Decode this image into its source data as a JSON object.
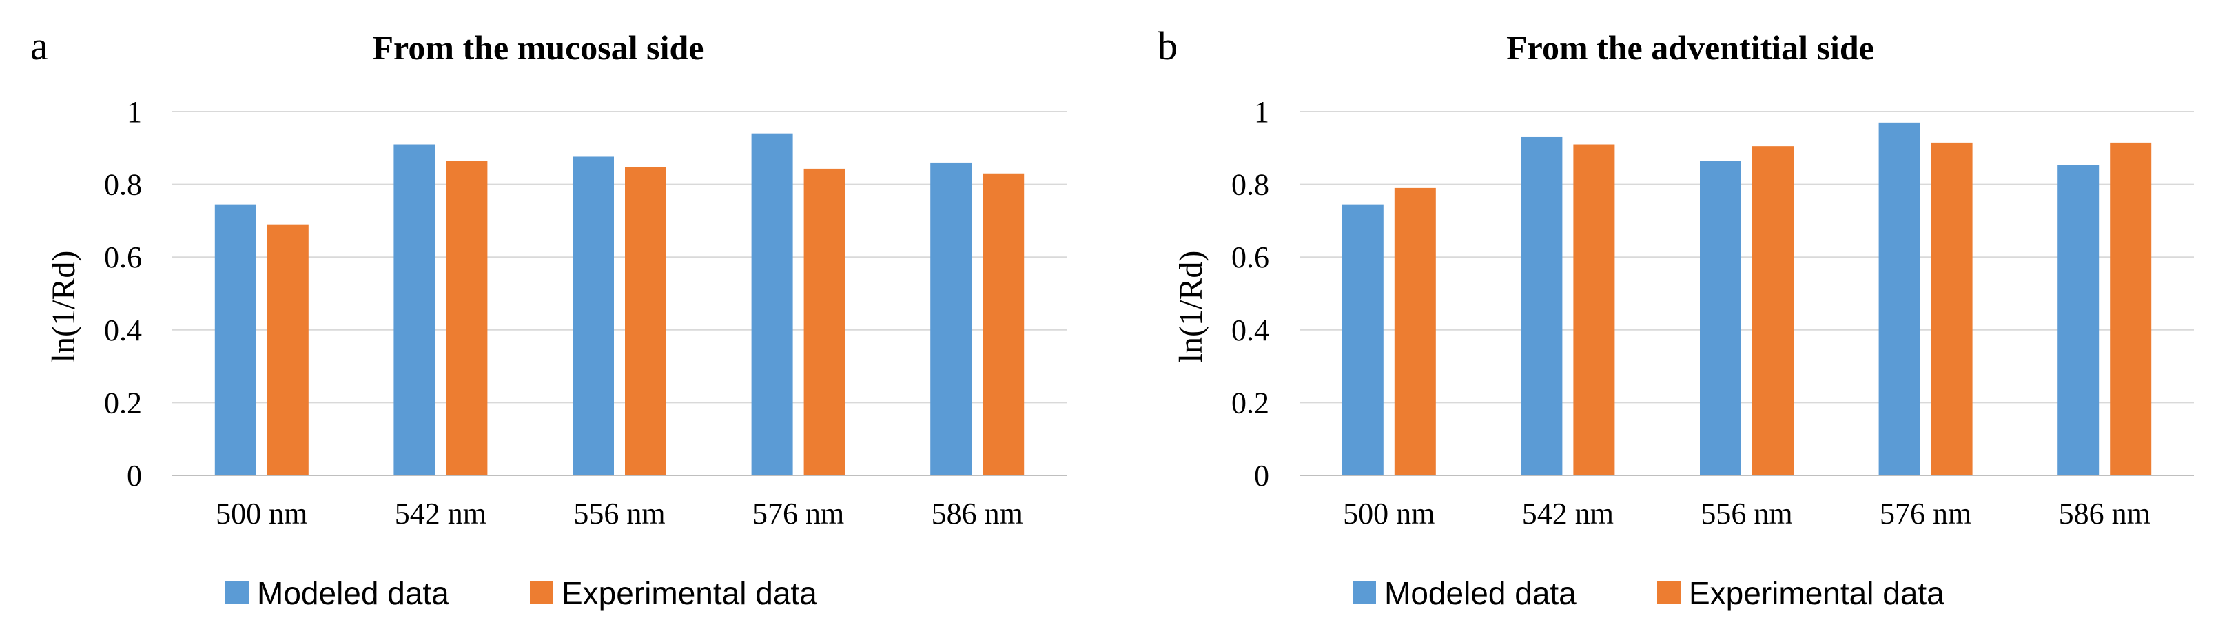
{
  "colors": {
    "modeled": "#5b9bd5",
    "experimental": "#ed7d31"
  },
  "chart_data": [
    {
      "panel": "a",
      "type": "bar",
      "title": "From the mucosal side",
      "ylabel": "ln(1/Rd)",
      "xlabel": "",
      "ylim": [
        0,
        1
      ],
      "yticks": [
        "0",
        "0.2",
        "0.4",
        "0.6",
        "0.8",
        "1"
      ],
      "categories": [
        "500 nm",
        "542 nm",
        "556 nm",
        "576 nm",
        "586 nm"
      ],
      "series": [
        {
          "name": "Modeled data",
          "values": [
            0.745,
            0.91,
            0.876,
            0.94,
            0.86
          ]
        },
        {
          "name": "Experimental data",
          "values": [
            0.69,
            0.864,
            0.848,
            0.843,
            0.83
          ]
        }
      ],
      "legend": "bottom",
      "grid": true
    },
    {
      "panel": "b",
      "type": "bar",
      "title": "From the adventitial side",
      "ylabel": "ln(1/Rd)",
      "xlabel": "",
      "ylim": [
        0,
        1
      ],
      "yticks": [
        "0",
        "0.2",
        "0.4",
        "0.6",
        "0.8",
        "1"
      ],
      "categories": [
        "500 nm",
        "542 nm",
        "556 nm",
        "576 nm",
        "586 nm"
      ],
      "series": [
        {
          "name": "Modeled data",
          "values": [
            0.745,
            0.93,
            0.865,
            0.97,
            0.853
          ]
        },
        {
          "name": "Experimental data",
          "values": [
            0.79,
            0.91,
            0.905,
            0.915,
            0.915
          ]
        }
      ],
      "legend": "bottom",
      "grid": true
    }
  ]
}
